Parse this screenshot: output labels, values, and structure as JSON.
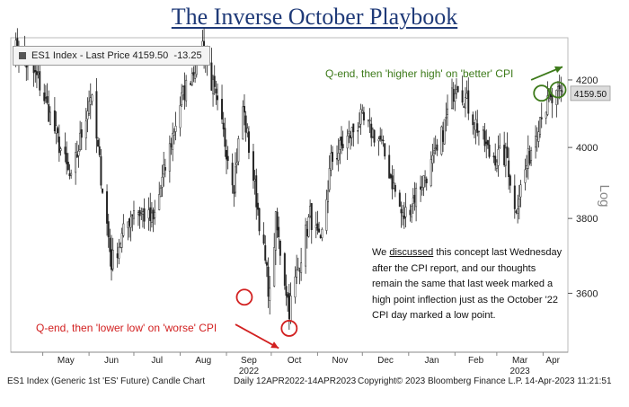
{
  "title": "The Inverse October Playbook",
  "legend": {
    "label": "ES1 Index - Last Price",
    "last_price": "4159.50",
    "change": "-13.25",
    "swatch_color": "#555555"
  },
  "last_price_tag": "4159.50",
  "annotations": {
    "top": "Q-end, then 'higher high' on 'better' CPI",
    "top_color": "#3d7a1a",
    "bottom": "Q-end, then 'lower low' on 'worse' CPI",
    "bottom_color": "#d22020"
  },
  "note": {
    "before": "We ",
    "link": "discussed",
    "after": " this concept last Wednesday after the CPI report, and our thoughts remain the same that last week marked a high point inflection just as the October '22 CPI day marked a low point."
  },
  "footer": {
    "description": "ES1 Index (Generic 1st 'ES' Future) Candle Chart",
    "range": "Daily 12APR2022-14APR2023",
    "copyright": "Copyright© 2023 Bloomberg Finance L.P.",
    "timestamp": "14-Apr-2023 11:21:51"
  },
  "chart_data": {
    "type": "candlestick",
    "title": "The Inverse October Playbook",
    "series_name": "ES1 Index - Last Price",
    "y_scale": "log",
    "y_ticks": [
      3600,
      3800,
      4000,
      4200
    ],
    "ylim": [
      3450,
      4330
    ],
    "month_labels": [
      "May",
      "Jun",
      "Jul",
      "Aug",
      "Sep",
      "Oct",
      "Nov",
      "Dec",
      "Jan",
      "Feb",
      "Mar",
      "Apr"
    ],
    "year_labels": [
      {
        "label": "2022",
        "month": "Sep"
      },
      {
        "label": "2023",
        "month": "Mar"
      }
    ],
    "last_price": 4159.5,
    "anchors": [
      {
        "date": "2022-04-12",
        "close": 4300
      },
      {
        "date": "2022-04-28",
        "close": 4200
      },
      {
        "date": "2022-05-20",
        "close": 3900
      },
      {
        "date": "2022-06-02",
        "close": 4160
      },
      {
        "date": "2022-06-16",
        "close": 3680
      },
      {
        "date": "2022-07-01",
        "close": 3830
      },
      {
        "date": "2022-07-14",
        "close": 3790
      },
      {
        "date": "2022-08-01",
        "close": 4130
      },
      {
        "date": "2022-08-16",
        "close": 4310
      },
      {
        "date": "2022-09-06",
        "close": 3900
      },
      {
        "date": "2022-09-12",
        "close": 4120
      },
      {
        "date": "2022-09-30",
        "close": 3590
      },
      {
        "date": "2022-10-04",
        "close": 3790
      },
      {
        "date": "2022-10-13",
        "close": 3560
      },
      {
        "date": "2022-10-27",
        "close": 3810
      },
      {
        "date": "2022-11-03",
        "close": 3720
      },
      {
        "date": "2022-11-10",
        "close": 3960
      },
      {
        "date": "2022-11-30",
        "close": 4080
      },
      {
        "date": "2022-12-13",
        "close": 4020
      },
      {
        "date": "2022-12-28",
        "close": 3800
      },
      {
        "date": "2023-01-20",
        "close": 3980
      },
      {
        "date": "2023-02-02",
        "close": 4200
      },
      {
        "date": "2023-02-24",
        "close": 3980
      },
      {
        "date": "2023-03-08",
        "close": 3970
      },
      {
        "date": "2023-03-13",
        "close": 3820
      },
      {
        "date": "2023-03-31",
        "close": 4110
      },
      {
        "date": "2023-04-14",
        "close": 4160
      }
    ],
    "markers": [
      {
        "date": "2022-09-13",
        "price": 3590,
        "color": "#d22020"
      },
      {
        "date": "2022-10-13",
        "price": 3510,
        "color": "#d22020"
      },
      {
        "date": "2023-03-31",
        "price": 4160,
        "color": "#3d7a1a"
      },
      {
        "date": "2023-04-11",
        "price": 4170,
        "color": "#3d7a1a"
      }
    ],
    "up_color": "#ffffff",
    "down_color": "#222222",
    "grid": false
  }
}
